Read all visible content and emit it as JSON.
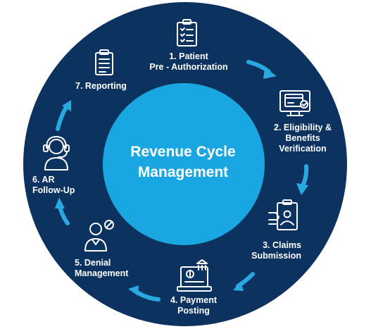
{
  "center": {
    "line1": "Revenue Cycle",
    "line2": "Management"
  },
  "steps": [
    {
      "line1": "1. Patient",
      "line2": "Pre - Authorization",
      "icon": "clipboard-checklist-icon"
    },
    {
      "line1": "2. Eligibility &",
      "line2": "Benefits",
      "line3": "Verification",
      "icon": "monitor-card-icon"
    },
    {
      "line1": "3. Claims",
      "line2": "Submission",
      "icon": "id-document-icon"
    },
    {
      "line1": "4. Payment",
      "line2": "Posting",
      "icon": "payment-register-icon"
    },
    {
      "line1": "5. Denial",
      "line2": "Management",
      "icon": "person-denied-icon"
    },
    {
      "line1": "6. AR",
      "line2": "Follow-Up",
      "icon": "headset-agent-icon"
    },
    {
      "line1": "7. Reporting",
      "icon": "report-document-icon"
    }
  ],
  "colors": {
    "outer_ring": "#0c3260",
    "inner_circle": "#1aa6e0",
    "arrow": "#29a9e1",
    "text": "#ffffff"
  }
}
